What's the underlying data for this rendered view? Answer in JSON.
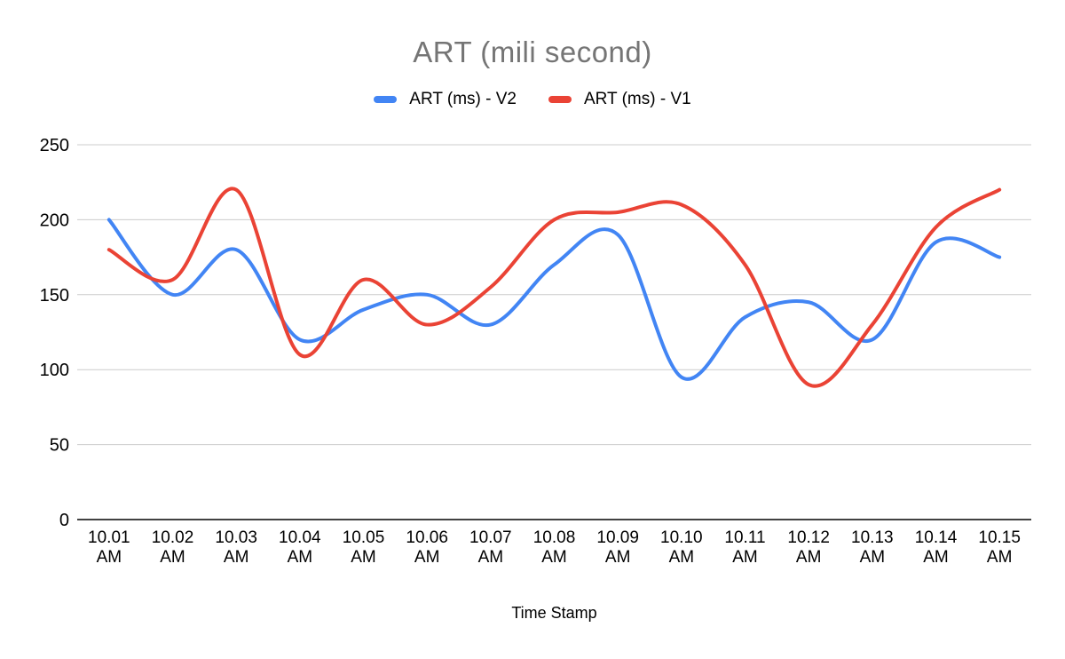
{
  "title": "ART (mili second)",
  "x_axis_label": "Time Stamp",
  "chart_data": {
    "type": "line",
    "smooth": true,
    "title": "ART (mili second)",
    "xlabel": "Time Stamp",
    "ylabel": "",
    "ylim": [
      0,
      250
    ],
    "yticks": [
      0,
      50,
      100,
      150,
      200,
      250
    ],
    "grid": true,
    "legend_position": "top",
    "background": "#ffffff",
    "title_color": "#757575",
    "gridline_color": "#cccccc",
    "axis_line_color": "#424242",
    "categories": [
      "10.01 AM",
      "10.02 AM",
      "10.03 AM",
      "10.04 AM",
      "10.05 AM",
      "10.06 AM",
      "10.07 AM",
      "10.08 AM",
      "10.09 AM",
      "10.10 AM",
      "10.11 AM",
      "10.12 AM",
      "10.13 AM",
      "10.14 AM",
      "10.15 AM"
    ],
    "series": [
      {
        "name": "ART (ms) - V2",
        "color": "#4285F4",
        "values": [
          200,
          150,
          180,
          120,
          140,
          150,
          130,
          170,
          190,
          95,
          135,
          145,
          120,
          185,
          175
        ]
      },
      {
        "name": "ART (ms) - V1",
        "color": "#EA4335",
        "values": [
          180,
          160,
          220,
          110,
          160,
          130,
          155,
          200,
          205,
          210,
          170,
          90,
          130,
          195,
          220
        ]
      }
    ]
  }
}
